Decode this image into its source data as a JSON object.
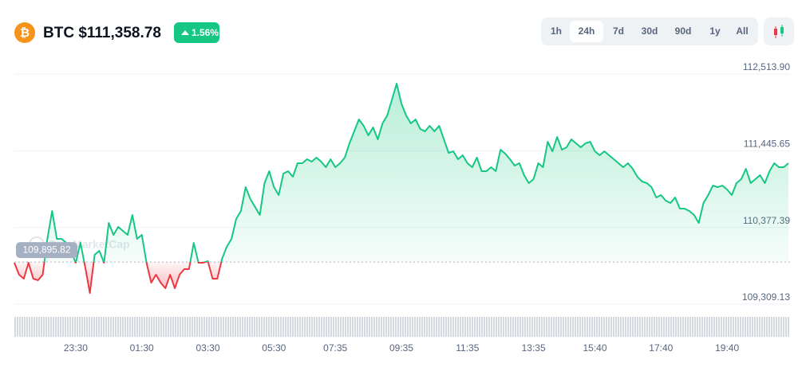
{
  "header": {
    "symbol_price": "BTC $111,358.78",
    "change_label": "1.56%",
    "timeframes": [
      "1h",
      "24h",
      "7d",
      "30d",
      "90d",
      "1y",
      "All"
    ],
    "selected_timeframe": 1
  },
  "chart_data": {
    "type": "line",
    "watermark": "CoinMarketCap",
    "up_color": "#16c784",
    "down_color": "#ea3943",
    "grid": true,
    "baseline": {
      "value": 109895.82,
      "label": "109,895.82"
    },
    "ylim": [
      109309.13,
      112513.9
    ],
    "yticks": [
      {
        "value": 109309.13,
        "label": "109,309.13"
      },
      {
        "value": 110377.39,
        "label": "110,377.39"
      },
      {
        "value": 111445.65,
        "label": "111,445.65"
      },
      {
        "value": 112513.9,
        "label": "112,513.90"
      }
    ],
    "categories": [
      null,
      null,
      null,
      null,
      null,
      null,
      null,
      null,
      null,
      null,
      null,
      null,
      null,
      "23:30",
      null,
      null,
      null,
      null,
      null,
      null,
      null,
      null,
      null,
      null,
      null,
      null,
      null,
      "01:30",
      null,
      null,
      null,
      null,
      null,
      null,
      null,
      null,
      null,
      null,
      null,
      null,
      null,
      "03:30",
      null,
      null,
      null,
      null,
      null,
      null,
      null,
      null,
      null,
      null,
      null,
      null,
      null,
      "05:30",
      null,
      null,
      null,
      null,
      null,
      null,
      null,
      null,
      null,
      null,
      null,
      null,
      "07:35",
      null,
      null,
      null,
      null,
      null,
      null,
      null,
      null,
      null,
      null,
      null,
      null,
      null,
      "09:35",
      null,
      null,
      null,
      null,
      null,
      null,
      null,
      null,
      null,
      null,
      null,
      null,
      null,
      "11:35",
      null,
      null,
      null,
      null,
      null,
      null,
      null,
      null,
      null,
      null,
      null,
      null,
      null,
      "13:35",
      null,
      null,
      null,
      null,
      null,
      null,
      null,
      null,
      null,
      null,
      null,
      null,
      "15:40",
      null,
      null,
      null,
      null,
      null,
      null,
      null,
      null,
      null,
      null,
      null,
      null,
      null,
      "17:40",
      null,
      null,
      null,
      null,
      null,
      null,
      null,
      null,
      null,
      null,
      null,
      null,
      null,
      "19:40",
      null,
      null,
      null,
      null,
      null,
      null,
      null,
      null,
      null,
      null,
      null,
      null,
      null
    ],
    "values": [
      109886,
      109719,
      109664,
      109886,
      109664,
      109642,
      109719,
      110218,
      110607,
      110218,
      110218,
      110163,
      110052,
      109886,
      110163,
      109830,
      109464,
      109997,
      110052,
      109886,
      110440,
      110274,
      110385,
      110329,
      110274,
      110551,
      110218,
      110274,
      109886,
      109608,
      109719,
      109608,
      109531,
      109719,
      109531,
      109719,
      109797,
      109797,
      110163,
      109886,
      109886,
      109908,
      109664,
      109664,
      109941,
      110107,
      110218,
      110496,
      110607,
      110939,
      110773,
      110662,
      110551,
      110995,
      111161,
      110939,
      110828,
      111128,
      111161,
      111083,
      111272,
      111272,
      111327,
      111294,
      111350,
      111294,
      111216,
      111327,
      111216,
      111272,
      111350,
      111549,
      111716,
      111882,
      111793,
      111660,
      111771,
      111605,
      111826,
      111937,
      112159,
      112381,
      112104,
      111937,
      111826,
      111882,
      111749,
      111716,
      111793,
      111716,
      111793,
      111605,
      111416,
      111438,
      111327,
      111383,
      111272,
      111216,
      111350,
      111161,
      111161,
      111216,
      111161,
      111460,
      111405,
      111327,
      111239,
      111272,
      111106,
      110995,
      111050,
      111272,
      111216,
      111571,
      111438,
      111638,
      111460,
      111494,
      111605,
      111549,
      111494,
      111549,
      111571,
      111438,
      111383,
      111438,
      111383,
      111327,
      111272,
      111216,
      111272,
      111194,
      111083,
      111017,
      110995,
      110939,
      110795,
      110828,
      110751,
      110717,
      110795,
      110640,
      110640,
      110607,
      110551,
      110440,
      110717,
      110828,
      110961,
      110939,
      110961,
      110906,
      110828,
      110995,
      111050,
      111194,
      110995,
      111050,
      111106,
      110995,
      111161,
      111272,
      111216,
      111216,
      111272
    ]
  }
}
